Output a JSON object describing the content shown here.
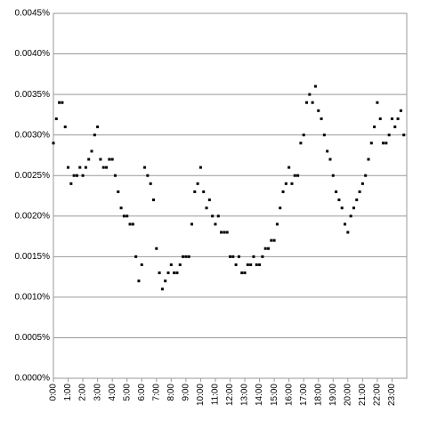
{
  "chart_data": {
    "type": "scatter",
    "color": "#000000",
    "grid": true,
    "xlim": [
      0,
      24
    ],
    "ylim": [
      0,
      0.0045
    ],
    "yticks": [
      {
        "value": 0,
        "label": "0.0000%"
      },
      {
        "value": 0.0005,
        "label": "0.0005%"
      },
      {
        "value": 0.001,
        "label": "0.0010%"
      },
      {
        "value": 0.0015,
        "label": "0.0015%"
      },
      {
        "value": 0.002,
        "label": "0.0020%"
      },
      {
        "value": 0.0025,
        "label": "0.0025%"
      },
      {
        "value": 0.003,
        "label": "0.0030%"
      },
      {
        "value": 0.0035,
        "label": "0.0035%"
      },
      {
        "value": 0.004,
        "label": "0.0040%"
      },
      {
        "value": 0.0045,
        "label": "0.0045%"
      }
    ],
    "xticks": [
      {
        "value": 0,
        "label": "0:00"
      },
      {
        "value": 1,
        "label": "1:00"
      },
      {
        "value": 2,
        "label": "2:00"
      },
      {
        "value": 3,
        "label": "3:00"
      },
      {
        "value": 4,
        "label": "4:00"
      },
      {
        "value": 5,
        "label": "5:00"
      },
      {
        "value": 6,
        "label": "6:00"
      },
      {
        "value": 7,
        "label": "7:00"
      },
      {
        "value": 8,
        "label": "8:00"
      },
      {
        "value": 9,
        "label": "9:00"
      },
      {
        "value": 10,
        "label": "10:00"
      },
      {
        "value": 11,
        "label": "11:00"
      },
      {
        "value": 12,
        "label": "12:00"
      },
      {
        "value": 13,
        "label": "13:00"
      },
      {
        "value": 14,
        "label": "14:00"
      },
      {
        "value": 15,
        "label": "15:00"
      },
      {
        "value": 16,
        "label": "16:00"
      },
      {
        "value": 17,
        "label": "17:00"
      },
      {
        "value": 18,
        "label": "18:00"
      },
      {
        "value": 19,
        "label": "19:00"
      },
      {
        "value": 20,
        "label": "20:00"
      },
      {
        "value": 21,
        "label": "21:00"
      },
      {
        "value": 22,
        "label": "22:00"
      },
      {
        "value": 23,
        "label": "23:00"
      }
    ],
    "x": [
      0,
      0.2,
      0.4,
      0.6,
      0.8,
      1,
      1.2,
      1.4,
      1.6,
      1.8,
      2,
      2.2,
      2.4,
      2.6,
      2.8,
      3,
      3.2,
      3.4,
      3.6,
      3.8,
      4,
      4.2,
      4.4,
      4.6,
      4.8,
      5,
      5.2,
      5.4,
      5.6,
      5.8,
      6,
      6.2,
      6.4,
      6.6,
      6.8,
      7,
      7.2,
      7.4,
      7.6,
      7.8,
      8,
      8.2,
      8.4,
      8.6,
      8.8,
      9,
      9.2,
      9.4,
      9.6,
      9.8,
      10,
      10.2,
      10.4,
      10.6,
      10.8,
      11,
      11.2,
      11.4,
      11.6,
      11.8,
      12,
      12.2,
      12.4,
      12.6,
      12.8,
      13,
      13.2,
      13.4,
      13.6,
      13.8,
      14,
      14.2,
      14.4,
      14.6,
      14.8,
      15,
      15.2,
      15.4,
      15.6,
      15.8,
      16,
      16.2,
      16.4,
      16.6,
      16.8,
      17,
      17.2,
      17.4,
      17.6,
      17.8,
      18,
      18.2,
      18.4,
      18.6,
      18.8,
      19,
      19.2,
      19.4,
      19.6,
      19.8,
      20,
      20.2,
      20.4,
      20.6,
      20.8,
      21,
      21.2,
      21.4,
      21.6,
      21.8,
      22,
      22.2,
      22.4,
      22.6,
      22.8,
      23,
      23.2,
      23.4,
      23.6,
      23.8
    ],
    "values": [
      0.0029,
      0.0032,
      0.0034,
      0.0034,
      0.0031,
      0.0026,
      0.0024,
      0.0025,
      0.0025,
      0.0026,
      0.0025,
      0.0026,
      0.0027,
      0.0028,
      0.003,
      0.0031,
      0.0027,
      0.0026,
      0.0026,
      0.0027,
      0.0027,
      0.0025,
      0.0023,
      0.0021,
      0.002,
      0.002,
      0.0019,
      0.0019,
      0.0015,
      0.0012,
      0.0014,
      0.0026,
      0.0025,
      0.0024,
      0.0022,
      0.0016,
      0.0013,
      0.0011,
      0.0012,
      0.0013,
      0.0014,
      0.0013,
      0.0013,
      0.0014,
      0.0015,
      0.0015,
      0.0015,
      0.0019,
      0.0023,
      0.0024,
      0.0026,
      0.0023,
      0.0021,
      0.0022,
      0.002,
      0.0019,
      0.002,
      0.0018,
      0.0018,
      0.0018,
      0.0015,
      0.0015,
      0.0014,
      0.0015,
      0.0013,
      0.0013,
      0.0014,
      0.0014,
      0.0015,
      0.0014,
      0.0014,
      0.0015,
      0.0016,
      0.0016,
      0.0017,
      0.0017,
      0.0019,
      0.0021,
      0.0023,
      0.0024,
      0.0026,
      0.0024,
      0.0025,
      0.0025,
      0.0029,
      0.003,
      0.0034,
      0.0035,
      0.0034,
      0.0036,
      0.0033,
      0.0032,
      0.003,
      0.0028,
      0.0027,
      0.0025,
      0.0023,
      0.0022,
      0.0021,
      0.0019,
      0.0018,
      0.002,
      0.0021,
      0.0022,
      0.0023,
      0.0024,
      0.0025,
      0.0027,
      0.0029,
      0.0031,
      0.0034,
      0.0032,
      0.0029,
      0.0029,
      0.003,
      0.0032,
      0.0031,
      0.0032,
      0.0033,
      0.003
    ]
  }
}
